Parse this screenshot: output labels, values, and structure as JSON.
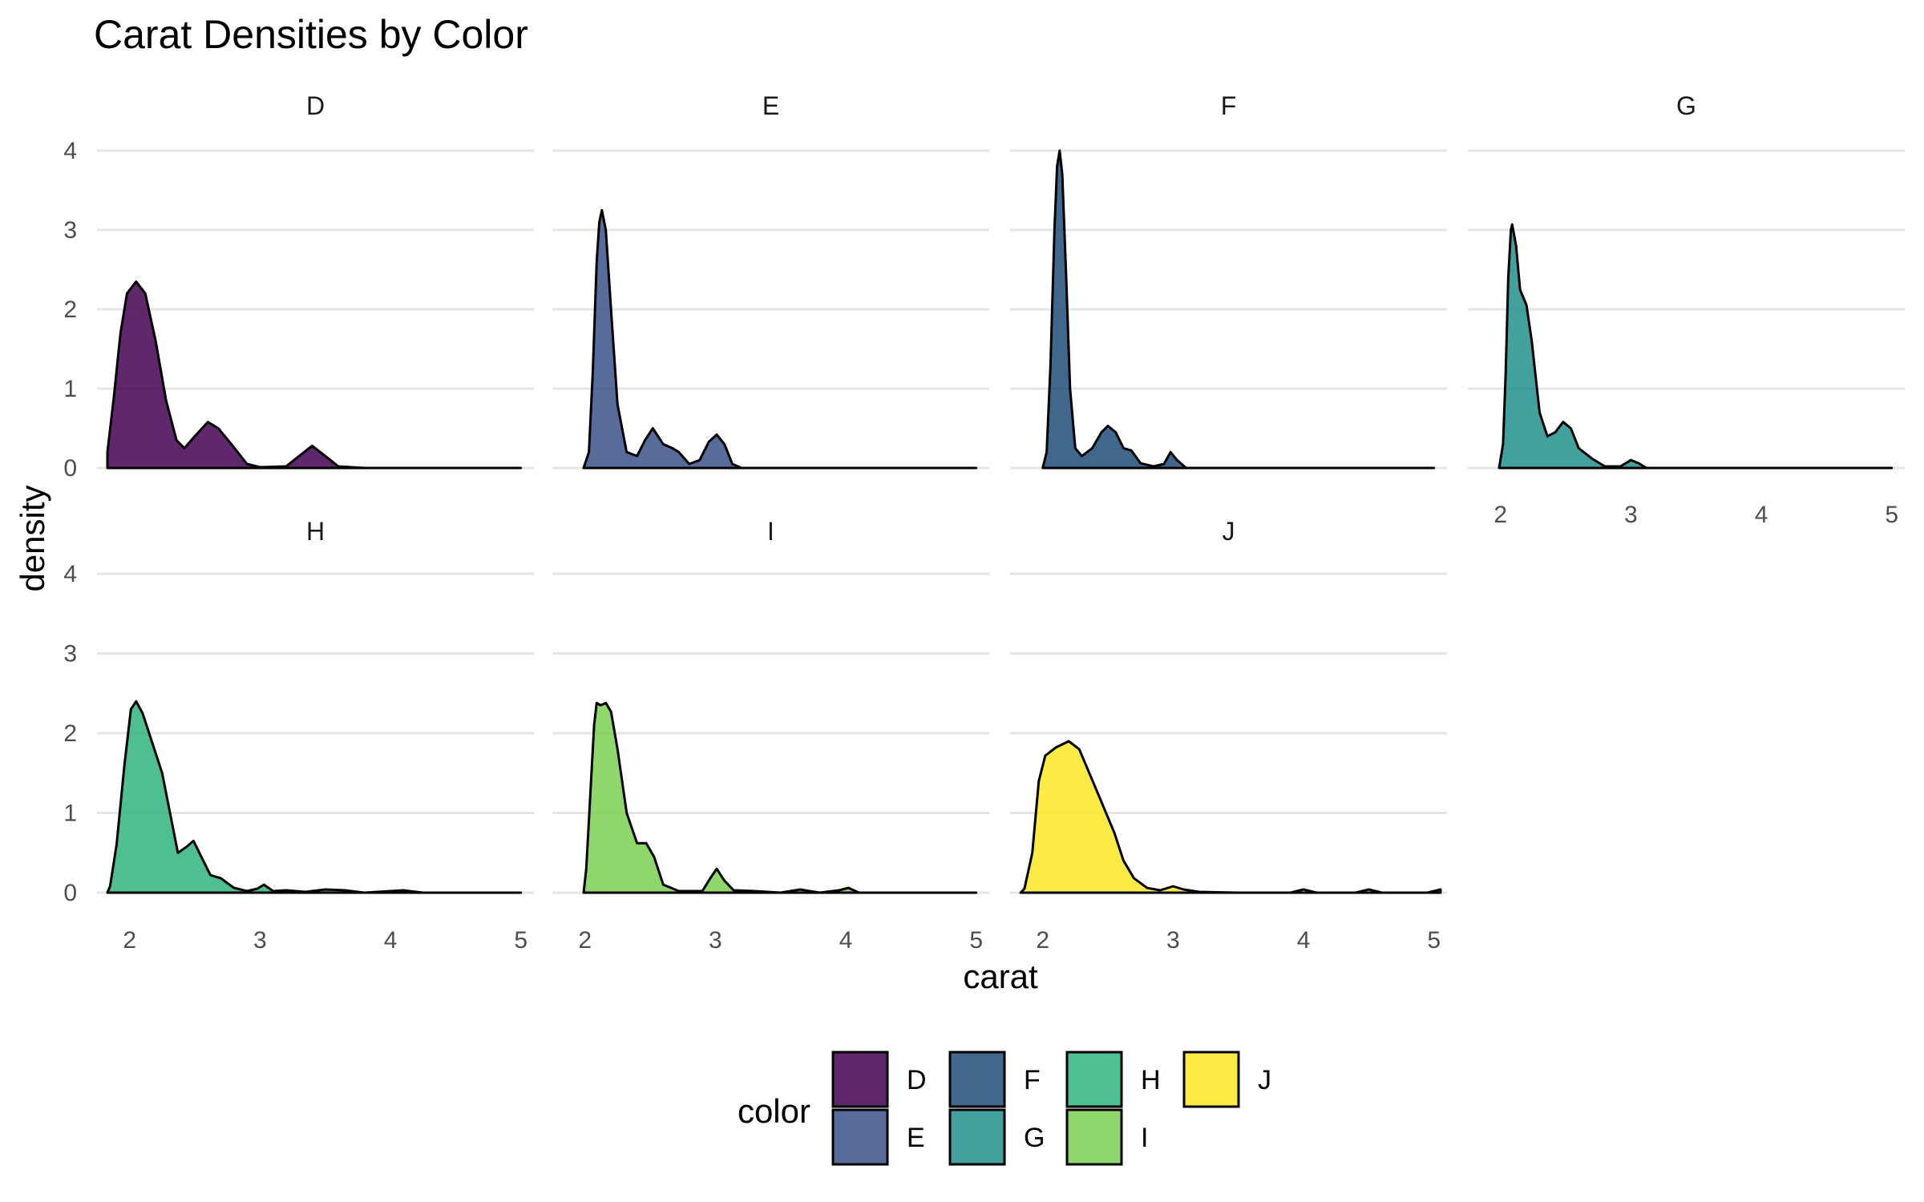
{
  "chart_data": {
    "type": "area",
    "subtype": "faceted density",
    "title": "Carat Densities by Color",
    "xlabel": "carat",
    "ylabel": "density",
    "xlim": [
      1.75,
      5.1
    ],
    "ylim": [
      0,
      4.25
    ],
    "x_ticks": [
      2,
      3,
      4,
      5
    ],
    "y_ticks": [
      0,
      1,
      2,
      3,
      4
    ],
    "grid": "horizontal major lines",
    "facet_ncol": 4,
    "legend": {
      "title": "color",
      "position": "bottom",
      "ncol": 4,
      "entries": [
        "D",
        "E",
        "F",
        "G",
        "H",
        "I",
        "J"
      ]
    },
    "series": [
      {
        "name": "D",
        "color": "#440154",
        "points": [
          [
            1.83,
            0
          ],
          [
            1.83,
            0.2
          ],
          [
            1.88,
            0.9
          ],
          [
            1.93,
            1.7
          ],
          [
            1.98,
            2.2
          ],
          [
            2.05,
            2.35
          ],
          [
            2.12,
            2.2
          ],
          [
            2.2,
            1.6
          ],
          [
            2.28,
            0.85
          ],
          [
            2.36,
            0.35
          ],
          [
            2.42,
            0.25
          ],
          [
            2.5,
            0.4
          ],
          [
            2.6,
            0.58
          ],
          [
            2.68,
            0.5
          ],
          [
            2.78,
            0.3
          ],
          [
            2.9,
            0.05
          ],
          [
            3.0,
            0.01
          ],
          [
            3.2,
            0.02
          ],
          [
            3.3,
            0.15
          ],
          [
            3.4,
            0.28
          ],
          [
            3.5,
            0.15
          ],
          [
            3.6,
            0.02
          ],
          [
            3.8,
            0
          ],
          [
            5.0,
            0
          ]
        ]
      },
      {
        "name": "E",
        "color": "#3B528B",
        "points": [
          [
            1.99,
            0
          ],
          [
            2.03,
            0.2
          ],
          [
            2.06,
            1.2
          ],
          [
            2.09,
            2.6
          ],
          [
            2.11,
            3.1
          ],
          [
            2.13,
            3.25
          ],
          [
            2.16,
            3.0
          ],
          [
            2.2,
            2.0
          ],
          [
            2.25,
            0.8
          ],
          [
            2.32,
            0.2
          ],
          [
            2.4,
            0.15
          ],
          [
            2.46,
            0.35
          ],
          [
            2.52,
            0.5
          ],
          [
            2.6,
            0.3
          ],
          [
            2.67,
            0.25
          ],
          [
            2.72,
            0.2
          ],
          [
            2.8,
            0.05
          ],
          [
            2.88,
            0.1
          ],
          [
            2.95,
            0.33
          ],
          [
            3.01,
            0.42
          ],
          [
            3.07,
            0.3
          ],
          [
            3.13,
            0.05
          ],
          [
            3.2,
            0
          ],
          [
            5.0,
            0
          ]
        ]
      },
      {
        "name": "F",
        "color": "#1F4E79",
        "points": [
          [
            2.0,
            0
          ],
          [
            2.03,
            0.2
          ],
          [
            2.06,
            1.3
          ],
          [
            2.09,
            3.0
          ],
          [
            2.11,
            3.8
          ],
          [
            2.13,
            4.0
          ],
          [
            2.15,
            3.7
          ],
          [
            2.18,
            2.4
          ],
          [
            2.21,
            1.0
          ],
          [
            2.25,
            0.25
          ],
          [
            2.3,
            0.15
          ],
          [
            2.38,
            0.25
          ],
          [
            2.45,
            0.45
          ],
          [
            2.5,
            0.53
          ],
          [
            2.56,
            0.45
          ],
          [
            2.62,
            0.25
          ],
          [
            2.68,
            0.22
          ],
          [
            2.75,
            0.06
          ],
          [
            2.85,
            0.02
          ],
          [
            2.93,
            0.05
          ],
          [
            2.98,
            0.2
          ],
          [
            3.03,
            0.1
          ],
          [
            3.1,
            0
          ],
          [
            5.0,
            0
          ]
        ]
      },
      {
        "name": "G",
        "color": "#21908C",
        "points": [
          [
            1.99,
            0
          ],
          [
            2.02,
            0.3
          ],
          [
            2.04,
            1.2
          ],
          [
            2.06,
            2.4
          ],
          [
            2.08,
            3.0
          ],
          [
            2.09,
            3.07
          ],
          [
            2.12,
            2.8
          ],
          [
            2.15,
            2.25
          ],
          [
            2.2,
            2.05
          ],
          [
            2.24,
            1.6
          ],
          [
            2.3,
            0.7
          ],
          [
            2.36,
            0.4
          ],
          [
            2.42,
            0.45
          ],
          [
            2.48,
            0.58
          ],
          [
            2.54,
            0.5
          ],
          [
            2.6,
            0.25
          ],
          [
            2.7,
            0.12
          ],
          [
            2.8,
            0.02
          ],
          [
            2.92,
            0.02
          ],
          [
            3.0,
            0.1
          ],
          [
            3.06,
            0.06
          ],
          [
            3.12,
            0
          ],
          [
            5.0,
            0
          ]
        ]
      },
      {
        "name": "H",
        "color": "#2FB47C",
        "points": [
          [
            1.83,
            0
          ],
          [
            1.85,
            0.08
          ],
          [
            1.9,
            0.6
          ],
          [
            1.96,
            1.6
          ],
          [
            2.01,
            2.3
          ],
          [
            2.05,
            2.4
          ],
          [
            2.1,
            2.25
          ],
          [
            2.17,
            1.9
          ],
          [
            2.25,
            1.5
          ],
          [
            2.31,
            1.0
          ],
          [
            2.37,
            0.5
          ],
          [
            2.44,
            0.58
          ],
          [
            2.49,
            0.65
          ],
          [
            2.55,
            0.45
          ],
          [
            2.62,
            0.22
          ],
          [
            2.7,
            0.18
          ],
          [
            2.8,
            0.06
          ],
          [
            2.9,
            0.02
          ],
          [
            2.98,
            0.05
          ],
          [
            3.03,
            0.1
          ],
          [
            3.1,
            0.02
          ],
          [
            3.2,
            0.03
          ],
          [
            3.35,
            0.01
          ],
          [
            3.5,
            0.04
          ],
          [
            3.65,
            0.03
          ],
          [
            3.8,
            0
          ],
          [
            4.1,
            0.03
          ],
          [
            4.25,
            0
          ],
          [
            5.0,
            0
          ]
        ]
      },
      {
        "name": "I",
        "color": "#7AD151",
        "points": [
          [
            1.99,
            0
          ],
          [
            2.01,
            0.3
          ],
          [
            2.04,
            1.2
          ],
          [
            2.07,
            2.1
          ],
          [
            2.09,
            2.38
          ],
          [
            2.12,
            2.35
          ],
          [
            2.16,
            2.38
          ],
          [
            2.2,
            2.27
          ],
          [
            2.25,
            1.8
          ],
          [
            2.32,
            1.0
          ],
          [
            2.4,
            0.62
          ],
          [
            2.47,
            0.62
          ],
          [
            2.53,
            0.45
          ],
          [
            2.6,
            0.1
          ],
          [
            2.72,
            0.02
          ],
          [
            2.9,
            0.02
          ],
          [
            2.96,
            0.18
          ],
          [
            3.01,
            0.3
          ],
          [
            3.07,
            0.15
          ],
          [
            3.14,
            0.03
          ],
          [
            3.3,
            0.02
          ],
          [
            3.5,
            0
          ],
          [
            3.65,
            0.04
          ],
          [
            3.8,
            0
          ],
          [
            3.95,
            0.03
          ],
          [
            4.02,
            0.06
          ],
          [
            4.1,
            0
          ],
          [
            5.0,
            0
          ]
        ]
      },
      {
        "name": "J",
        "color": "#FDE725",
        "points": [
          [
            1.83,
            0
          ],
          [
            1.86,
            0.05
          ],
          [
            1.92,
            0.5
          ],
          [
            1.97,
            1.4
          ],
          [
            2.02,
            1.72
          ],
          [
            2.1,
            1.82
          ],
          [
            2.2,
            1.9
          ],
          [
            2.28,
            1.8
          ],
          [
            2.37,
            1.45
          ],
          [
            2.46,
            1.1
          ],
          [
            2.55,
            0.75
          ],
          [
            2.62,
            0.4
          ],
          [
            2.7,
            0.18
          ],
          [
            2.8,
            0.06
          ],
          [
            2.9,
            0.03
          ],
          [
            3.0,
            0.08
          ],
          [
            3.08,
            0.04
          ],
          [
            3.2,
            0.01
          ],
          [
            3.5,
            0
          ],
          [
            3.9,
            0
          ],
          [
            4.0,
            0.04
          ],
          [
            4.1,
            0
          ],
          [
            4.4,
            0
          ],
          [
            4.5,
            0.04
          ],
          [
            4.6,
            0
          ],
          [
            4.95,
            0
          ],
          [
            5.05,
            0.04
          ],
          [
            5.05,
            0
          ]
        ]
      }
    ]
  }
}
